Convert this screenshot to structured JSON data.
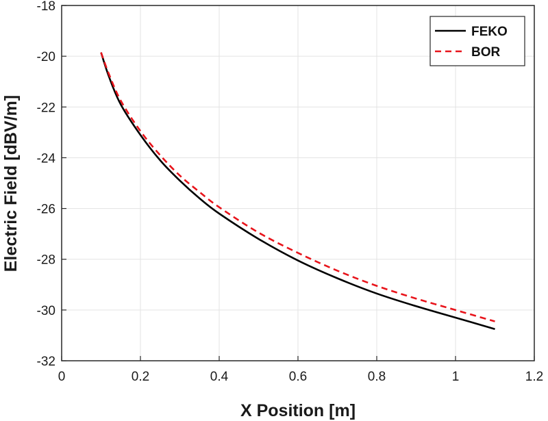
{
  "chart_data": {
    "type": "line",
    "title": "",
    "xlabel": "X Position [m]",
    "ylabel": "Electric Field [dBV/m]",
    "xlim": [
      0,
      1.2
    ],
    "ylim": [
      -32,
      -18
    ],
    "xticks": [
      0,
      0.2,
      0.4,
      0.6,
      0.8,
      1,
      1.2
    ],
    "xtick_labels": [
      "0",
      "0.2",
      "0.4",
      "0.6",
      "0.8",
      "1",
      "1.2"
    ],
    "yticks": [
      -32,
      -30,
      -28,
      -26,
      -24,
      -22,
      -20,
      -18
    ],
    "ytick_labels": [
      "-32",
      "-30",
      "-28",
      "-26",
      "-24",
      "-22",
      "-20",
      "-18"
    ],
    "grid": true,
    "legend_position": "top-right",
    "series": [
      {
        "name": "FEKO",
        "color": "#000000",
        "style": "solid",
        "x": [
          0.1,
          0.12,
          0.15,
          0.2,
          0.25,
          0.3,
          0.35,
          0.4,
          0.5,
          0.6,
          0.7,
          0.8,
          0.9,
          1.0,
          1.1
        ],
        "y": [
          -19.85,
          -20.8,
          -21.9,
          -23.1,
          -24.1,
          -24.9,
          -25.6,
          -26.2,
          -27.2,
          -28.05,
          -28.75,
          -29.35,
          -29.85,
          -30.3,
          -30.75
        ]
      },
      {
        "name": "BOR",
        "color": "#e8141b",
        "style": "dashed",
        "x": [
          0.1,
          0.12,
          0.15,
          0.2,
          0.25,
          0.3,
          0.35,
          0.4,
          0.5,
          0.6,
          0.7,
          0.8,
          0.9,
          1.0,
          1.1
        ],
        "y": [
          -19.85,
          -20.7,
          -21.75,
          -22.95,
          -23.9,
          -24.7,
          -25.35,
          -25.95,
          -26.95,
          -27.75,
          -28.45,
          -29.05,
          -29.55,
          -30.0,
          -30.45
        ]
      }
    ]
  }
}
